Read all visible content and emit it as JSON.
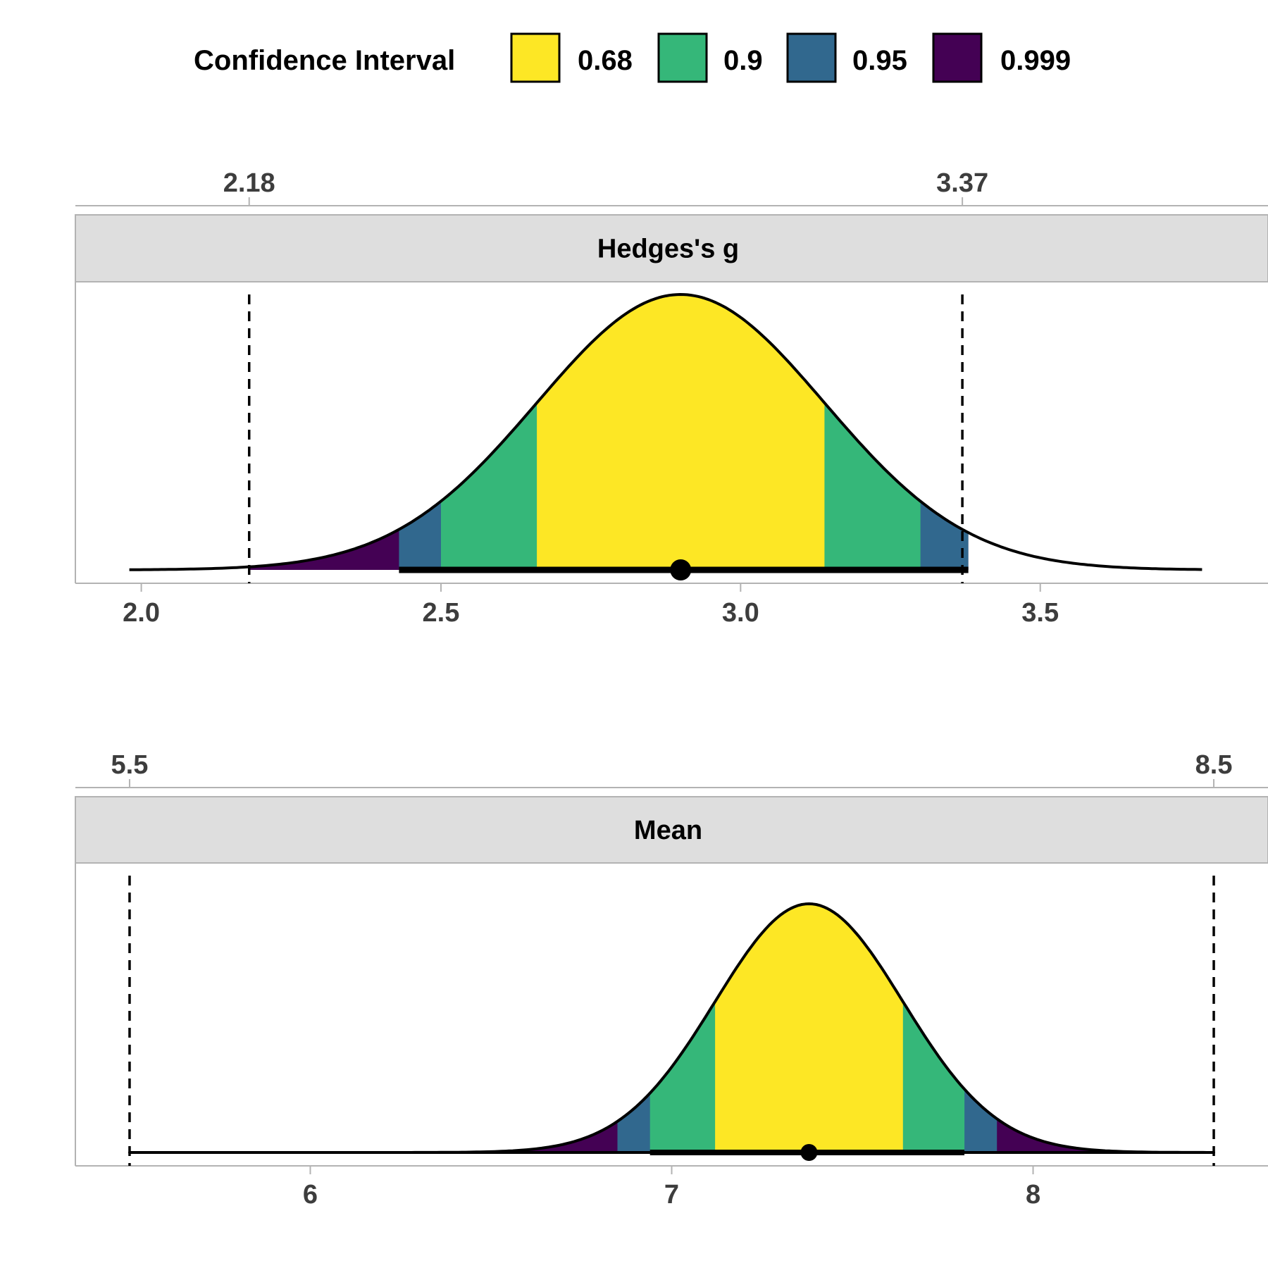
{
  "chart_data": {
    "type": "area",
    "legend": {
      "title": "Confidence Interval",
      "placement": "top",
      "entries": [
        {
          "label": "0.68",
          "color": "#FDE725"
        },
        {
          "label": "0.9",
          "color": "#35B779"
        },
        {
          "label": "0.95",
          "color": "#31688E"
        },
        {
          "label": "0.999",
          "color": "#440154"
        }
      ]
    },
    "panels": [
      {
        "title": "Hedges's g",
        "distribution": "normal",
        "xlim": [
          1.89,
          3.88
        ],
        "x_ticks": [
          "2.0",
          "2.5",
          "3.0",
          "3.5"
        ],
        "x_tick_values": [
          2.0,
          2.5,
          3.0,
          3.5
        ],
        "secondary_ticks": [
          "2.18",
          "3.37"
        ],
        "secondary_tick_values": [
          2.18,
          3.37
        ],
        "reference_lines": [
          2.18,
          3.37
        ],
        "curve_range": [
          1.98,
          3.77
        ],
        "peak": 2.9,
        "intervals": {
          "0.68": [
            2.66,
            3.14
          ],
          "0.9": [
            2.5,
            3.3
          ],
          "0.95": [
            2.43,
            3.38
          ],
          "0.999": [
            2.18,
            3.38
          ]
        },
        "point_estimate": 2.9,
        "interval_bar": [
          2.43,
          3.38
        ],
        "point_size": 30
      },
      {
        "title": "Mean",
        "distribution": "normal",
        "xlim": [
          5.35,
          8.65
        ],
        "x_ticks": [
          "6",
          "7",
          "8"
        ],
        "x_tick_values": [
          6,
          7,
          8
        ],
        "secondary_ticks": [
          "5.5",
          "8.5"
        ],
        "secondary_tick_values": [
          5.5,
          8.5
        ],
        "reference_lines": [
          5.5,
          8.5
        ],
        "curve_range": [
          5.5,
          8.5
        ],
        "peak": 7.38,
        "intervals": {
          "0.68": [
            7.12,
            7.64
          ],
          "0.9": [
            6.94,
            7.81
          ],
          "0.95": [
            6.85,
            7.9
          ],
          "0.999": [
            6.5,
            8.2
          ]
        },
        "point_estimate": 7.38,
        "interval_bar": [
          6.94,
          7.81
        ],
        "point_size": 24
      }
    ]
  }
}
